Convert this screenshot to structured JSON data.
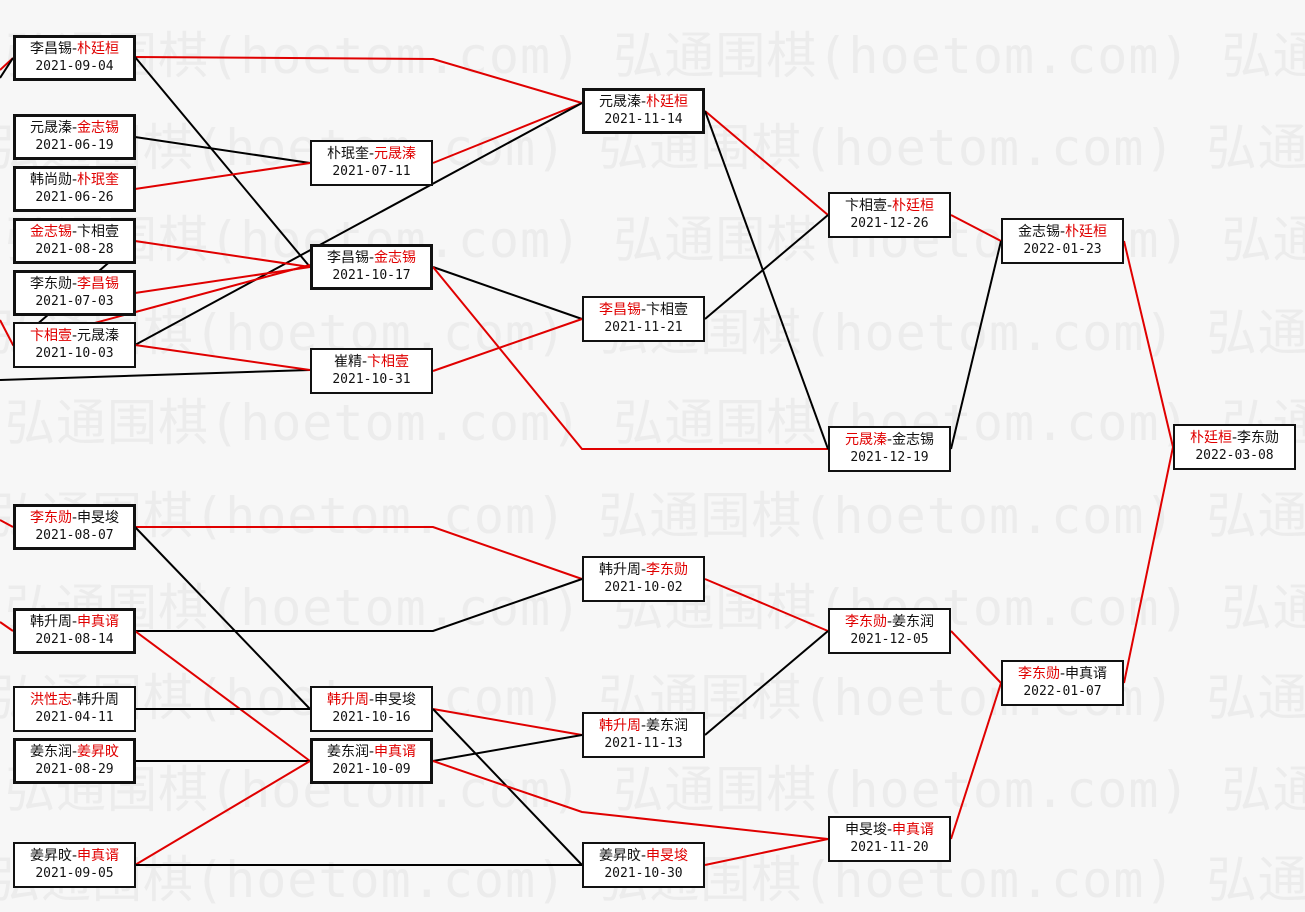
{
  "watermark": "弘通围棋(hoetom.com)",
  "colors": {
    "winner": "#e00000",
    "loser": "#111111",
    "winner_line": "#e00000",
    "loser_line": "#000000",
    "background": "#f7f7f7"
  },
  "matches": [
    {
      "players": [
        "李昌锡",
        "朴廷桓"
      ],
      "winner": 1,
      "date": "2021-09-04"
    },
    {
      "players": [
        "元晟溱",
        "金志锡"
      ],
      "winner": 1,
      "date": "2021-06-19"
    },
    {
      "players": [
        "韩尚勋",
        "朴珉奎"
      ],
      "winner": 1,
      "date": "2021-06-26"
    },
    {
      "players": [
        "金志锡",
        "卞相壹"
      ],
      "winner": 0,
      "date": "2021-08-28"
    },
    {
      "players": [
        "李东勋",
        "李昌锡"
      ],
      "winner": 1,
      "date": "2021-07-03"
    },
    {
      "players": [
        "卞相壹",
        "元晟溱"
      ],
      "winner": 0,
      "date": "2021-10-03"
    },
    {
      "players": [
        "李东勋",
        "申旻埈"
      ],
      "winner": 0,
      "date": "2021-08-07"
    },
    {
      "players": [
        "韩升周",
        "申真谞"
      ],
      "winner": 1,
      "date": "2021-08-14"
    },
    {
      "players": [
        "洪性志",
        "韩升周"
      ],
      "winner": 0,
      "date": "2021-04-11"
    },
    {
      "players": [
        "姜东润",
        "姜昇旼"
      ],
      "winner": 1,
      "date": "2021-08-29"
    },
    {
      "players": [
        "姜昇旼",
        "申真谞"
      ],
      "winner": 1,
      "date": "2021-09-05"
    },
    {
      "players": [
        "朴珉奎",
        "元晟溱"
      ],
      "winner": 1,
      "date": "2021-07-11"
    },
    {
      "players": [
        "李昌锡",
        "金志锡"
      ],
      "winner": 1,
      "date": "2021-10-17"
    },
    {
      "players": [
        "崔精",
        "卞相壹"
      ],
      "winner": 1,
      "date": "2021-10-31"
    },
    {
      "players": [
        "韩升周",
        "申旻埈"
      ],
      "winner": 0,
      "date": "2021-10-16"
    },
    {
      "players": [
        "姜东润",
        "申真谞"
      ],
      "winner": 1,
      "date": "2021-10-09"
    },
    {
      "players": [
        "元晟溱",
        "朴廷桓"
      ],
      "winner": 1,
      "date": "2021-11-14"
    },
    {
      "players": [
        "李昌锡",
        "卞相壹"
      ],
      "winner": 0,
      "date": "2021-11-21"
    },
    {
      "players": [
        "韩升周",
        "李东勋"
      ],
      "winner": 1,
      "date": "2021-10-02"
    },
    {
      "players": [
        "韩升周",
        "姜东润"
      ],
      "winner": 0,
      "date": "2021-11-13"
    },
    {
      "players": [
        "姜昇旼",
        "申旻埈"
      ],
      "winner": 1,
      "date": "2021-10-30"
    },
    {
      "players": [
        "卞相壹",
        "朴廷桓"
      ],
      "winner": 1,
      "date": "2021-12-26"
    },
    {
      "players": [
        "元晟溱",
        "金志锡"
      ],
      "winner": 0,
      "date": "2021-12-19"
    },
    {
      "players": [
        "李东勋",
        "姜东润"
      ],
      "winner": 0,
      "date": "2021-12-05"
    },
    {
      "players": [
        "申旻埈",
        "申真谞"
      ],
      "winner": 1,
      "date": "2021-11-20"
    },
    {
      "players": [
        "金志锡",
        "朴廷桓"
      ],
      "winner": 1,
      "date": "2022-01-23"
    },
    {
      "players": [
        "李东勋",
        "申真谞"
      ],
      "winner": 0,
      "date": "2022-01-07"
    },
    {
      "players": [
        "朴廷桓",
        "李东勋"
      ],
      "winner": 0,
      "date": "2022-03-08"
    }
  ]
}
